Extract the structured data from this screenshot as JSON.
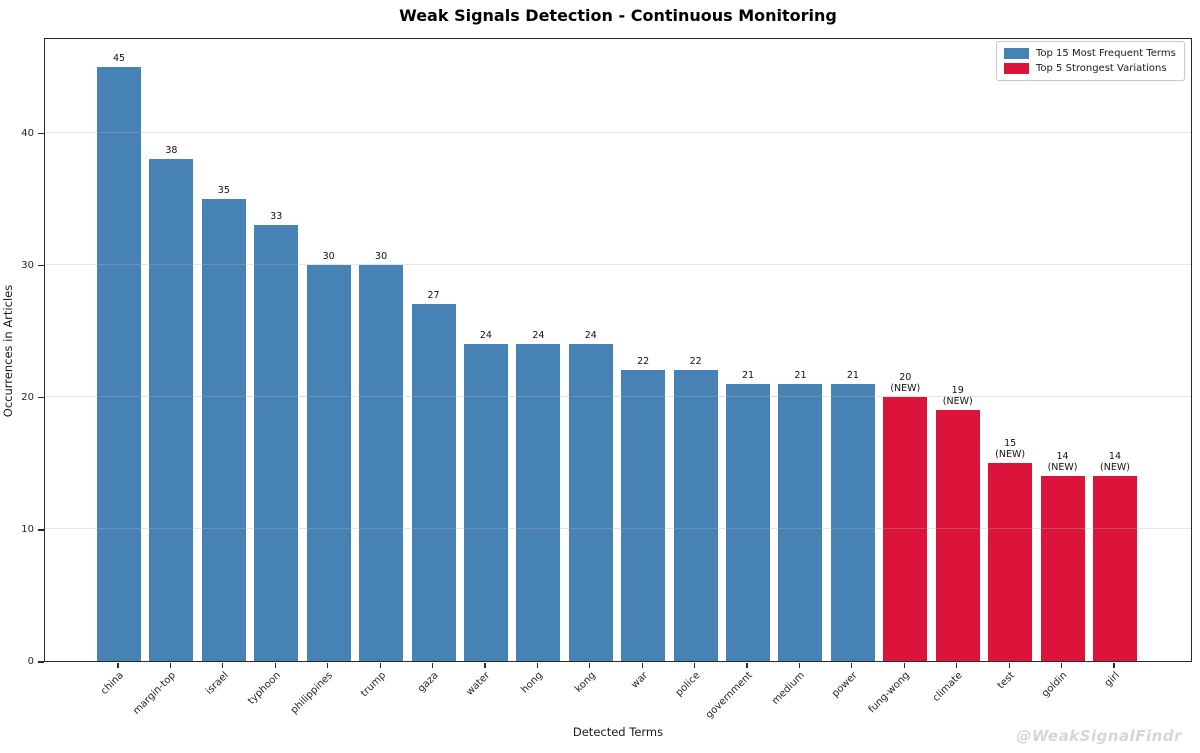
{
  "title": "Weak Signals Detection - Continuous Monitoring",
  "axis": {
    "xlabel": "Detected Terms",
    "ylabel": "Occurrences in Articles"
  },
  "watermark": "@WeakSignalFindr",
  "legend": {
    "items": [
      {
        "label": "Top 15 Most Frequent Terms",
        "color": "#4682B4"
      },
      {
        "label": "Top 5 Strongest Variations",
        "color": "#DC143C"
      }
    ]
  },
  "chart_data": {
    "type": "bar",
    "title": "Weak Signals Detection - Continuous Monitoring",
    "xlabel": "Detected Terms",
    "ylabel": "Occurrences in Articles",
    "ylim": [
      0,
      47.25
    ],
    "yticks": [
      0,
      10,
      20,
      30,
      40
    ],
    "grid": true,
    "legend_position": "upper right",
    "annotation": "(NEW)",
    "colors": {
      "frequent": "#4682B4",
      "new": "#DC143C"
    },
    "categories": [
      "china",
      "margin-top",
      "israel",
      "typhoon",
      "philippines",
      "trump",
      "gaza",
      "water",
      "hong",
      "kong",
      "war",
      "police",
      "government",
      "medium",
      "power",
      "fung-wong",
      "climate",
      "test",
      "goldin",
      "girl"
    ],
    "values": [
      45,
      38,
      35,
      33,
      30,
      30,
      27,
      24,
      24,
      24,
      22,
      22,
      21,
      21,
      21,
      20,
      19,
      15,
      14,
      14
    ],
    "new_flags": [
      false,
      false,
      false,
      false,
      false,
      false,
      false,
      false,
      false,
      false,
      false,
      false,
      false,
      false,
      false,
      true,
      true,
      true,
      true,
      true
    ],
    "series": [
      {
        "name": "Top 15 Most Frequent Terms",
        "color": "#4682B4",
        "categories": [
          "china",
          "margin-top",
          "israel",
          "typhoon",
          "philippines",
          "trump",
          "gaza",
          "water",
          "hong",
          "kong",
          "war",
          "police",
          "government",
          "medium",
          "power"
        ],
        "values": [
          45,
          38,
          35,
          33,
          30,
          30,
          27,
          24,
          24,
          24,
          22,
          22,
          21,
          21,
          21
        ]
      },
      {
        "name": "Top 5 Strongest Variations",
        "color": "#DC143C",
        "bar_annotation": "(NEW)",
        "categories": [
          "fung-wong",
          "climate",
          "test",
          "goldin",
          "girl"
        ],
        "values": [
          20,
          19,
          15,
          14,
          14
        ]
      }
    ]
  }
}
